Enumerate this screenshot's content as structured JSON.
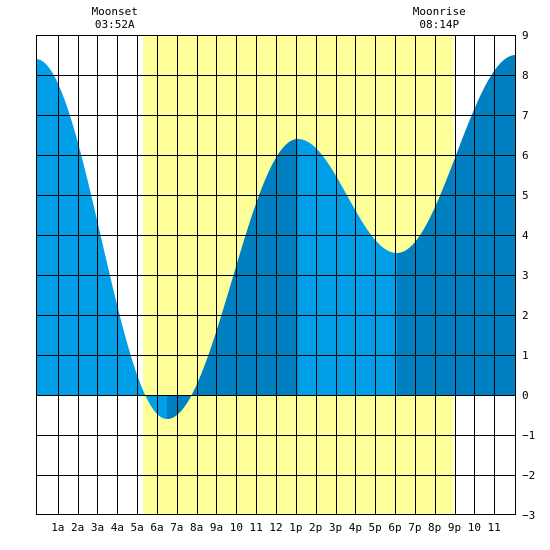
{
  "chart_data": {
    "type": "area",
    "title": "",
    "xlabel": "",
    "ylabel": "",
    "x_range_hours": [
      -0.1,
      24.1
    ],
    "ylim": [
      -3,
      9
    ],
    "yticks": [
      -3,
      -2,
      -1,
      0,
      1,
      2,
      3,
      4,
      5,
      6,
      7,
      8,
      9
    ],
    "ytick_labels": [
      "−3",
      "−2",
      "−1",
      "0",
      "1",
      "2",
      "3",
      "4",
      "5",
      "6",
      "7",
      "8",
      "9"
    ],
    "xticks": [
      {
        "hour": 1,
        "label": "1a"
      },
      {
        "hour": 2,
        "label": "2a"
      },
      {
        "hour": 3,
        "label": "3a"
      },
      {
        "hour": 4,
        "label": "4a"
      },
      {
        "hour": 5,
        "label": "5a"
      },
      {
        "hour": 6,
        "label": "6a"
      },
      {
        "hour": 7,
        "label": "7a"
      },
      {
        "hour": 8,
        "label": "8a"
      },
      {
        "hour": 9,
        "label": "9a"
      },
      {
        "hour": 10,
        "label": "10"
      },
      {
        "hour": 11,
        "label": "11"
      },
      {
        "hour": 12,
        "label": "12"
      },
      {
        "hour": 13,
        "label": "1p"
      },
      {
        "hour": 14,
        "label": "2p"
      },
      {
        "hour": 15,
        "label": "3p"
      },
      {
        "hour": 16,
        "label": "4p"
      },
      {
        "hour": 17,
        "label": "5p"
      },
      {
        "hour": 18,
        "label": "6p"
      },
      {
        "hour": 19,
        "label": "7p"
      },
      {
        "hour": 20,
        "label": "8p"
      },
      {
        "hour": 21,
        "label": "9p"
      },
      {
        "hour": 22,
        "label": "10"
      },
      {
        "hour": 23,
        "label": "11"
      }
    ],
    "tide_extrema": [
      {
        "hour": -0.1,
        "height": 8.4
      },
      {
        "hour": 6.5,
        "height": -0.6
      },
      {
        "hour": 13.1,
        "height": 6.4
      },
      {
        "hour": 18.1,
        "height": 3.55
      },
      {
        "hour": 24.1,
        "height": 8.5
      }
    ],
    "daylight": {
      "start_hour": 5.3,
      "end_hour": 20.95
    },
    "alternate_shading_bands": [
      {
        "start_hour": 6.5,
        "end_hour": 13.1
      },
      {
        "start_hour": 18.1,
        "end_hour": 24.1
      }
    ],
    "annotations": [
      {
        "hour": 3.87,
        "title": "Moonset",
        "time": "03:52A"
      },
      {
        "hour": 20.23,
        "title": "Moonrise",
        "time": "08:14P"
      }
    ],
    "grid": true,
    "colors": {
      "tide_light": "#009fe8",
      "tide_dark": "#0080c0",
      "daylight": "#ffff99",
      "background": "#ffffff",
      "grid": "#000000"
    }
  }
}
